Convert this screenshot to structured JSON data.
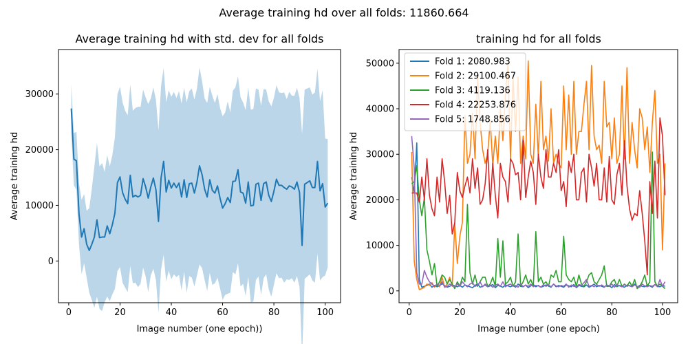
{
  "figure": {
    "suptitle": "Average training hd over all folds: 11860.664"
  },
  "chart_data": [
    {
      "type": "line",
      "title": "Average training hd with std. dev for all folds",
      "xlabel": "Image number (one epoch))",
      "ylabel": "Average training hd",
      "xlim": [
        -4,
        106
      ],
      "ylim": [
        -7500,
        38000
      ],
      "xticks": [
        0,
        20,
        40,
        60,
        80,
        100
      ],
      "yticks": [
        0,
        10000,
        20000,
        30000
      ],
      "line_color": "#1f77b4",
      "band_color": "#1f77b4",
      "grid": false,
      "x": [
        1,
        2,
        3,
        4,
        5,
        6,
        7,
        8,
        9,
        10,
        11,
        12,
        13,
        14,
        15,
        16,
        17,
        18,
        19,
        20,
        21,
        22,
        23,
        24,
        25,
        26,
        27,
        28,
        29,
        30,
        31,
        32,
        33,
        34,
        35,
        36,
        37,
        38,
        39,
        40,
        41,
        42,
        43,
        44,
        45,
        46,
        47,
        48,
        49,
        50,
        51,
        52,
        53,
        54,
        55,
        56,
        57,
        58,
        59,
        60,
        61,
        62,
        63,
        64,
        65,
        66,
        67,
        68,
        69,
        70,
        71,
        72,
        73,
        74,
        75,
        76,
        77,
        78,
        79,
        80,
        81,
        82,
        83,
        84,
        85,
        86,
        87,
        88,
        89,
        90,
        91,
        92,
        93,
        94,
        95,
        96,
        97,
        98,
        99,
        100,
        101
      ],
      "mean": [
        27400,
        18300,
        18000,
        8500,
        4300,
        5800,
        3000,
        1900,
        3000,
        4300,
        7400,
        4200,
        4300,
        4300,
        6300,
        4900,
        6500,
        8600,
        14100,
        15100,
        12300,
        11100,
        10300,
        15400,
        11500,
        11800,
        11500,
        11800,
        14800,
        13300,
        11300,
        13300,
        14900,
        12800,
        7100,
        14900,
        17900,
        12400,
        14500,
        13100,
        14000,
        13200,
        14000,
        11500,
        14600,
        11400,
        13900,
        14000,
        12200,
        14200,
        17100,
        15500,
        12900,
        11500,
        14600,
        12700,
        12200,
        13500,
        11300,
        9500,
        10300,
        11400,
        10500,
        14300,
        14400,
        16400,
        12400,
        12200,
        10400,
        14200,
        9900,
        10000,
        13800,
        14000,
        10900,
        13900,
        14200,
        11800,
        10700,
        12500,
        14700,
        13600,
        13600,
        13200,
        12900,
        13500,
        13300,
        12900,
        14200,
        12300,
        2800,
        13800,
        14100,
        14400,
        13200,
        13200,
        17900,
        12600,
        13900,
        9700,
        10400
      ],
      "upper": [
        31800,
        23000,
        23200,
        14000,
        11000,
        12000,
        9000,
        9500,
        13000,
        17000,
        21200,
        17000,
        17600,
        16000,
        19000,
        17000,
        19000,
        22200,
        30000,
        31300,
        28500,
        27000,
        26200,
        31700,
        27000,
        27500,
        27700,
        27700,
        30800,
        29400,
        28200,
        29200,
        31200,
        29000,
        23500,
        31400,
        34700,
        28500,
        30700,
        29500,
        30400,
        29300,
        30500,
        28300,
        31100,
        28500,
        30500,
        31000,
        29000,
        31000,
        34800,
        32300,
        29200,
        28400,
        31300,
        29700,
        28400,
        30000,
        27500,
        26000,
        26700,
        28700,
        26700,
        30600,
        31200,
        33200,
        29400,
        28500,
        27100,
        31200,
        27200,
        27300,
        31000,
        30800,
        27900,
        30900,
        30800,
        28700,
        27800,
        29300,
        31600,
        30300,
        30200,
        30300,
        29100,
        30400,
        29700,
        29700,
        31100,
        29300,
        22800,
        30800,
        31000,
        31200,
        29900,
        30300,
        34500,
        28700,
        30700,
        22000,
        21900
      ],
      "lower": [
        23000,
        13600,
        12800,
        3000,
        -2400,
        -400,
        -3000,
        -5700,
        -7000,
        -8400,
        -6400,
        -8600,
        -9000,
        -7400,
        -6400,
        -7200,
        -6000,
        -5000,
        -1800,
        -1100,
        -3900,
        -4800,
        -5600,
        -900,
        -4000,
        -3900,
        -4700,
        -4100,
        -1200,
        -2800,
        -5600,
        -2600,
        -1400,
        -3400,
        -9300,
        -1600,
        1100,
        -3700,
        -1700,
        -3300,
        -2400,
        -2900,
        -2500,
        -5300,
        -1900,
        -5700,
        -2700,
        -3000,
        -4600,
        -2600,
        -600,
        -1300,
        -3400,
        -5400,
        -2100,
        -4300,
        -4000,
        -3000,
        -4900,
        -7000,
        -6100,
        -5900,
        -5700,
        -2000,
        -2400,
        -400,
        -4600,
        -4100,
        -6300,
        -2800,
        -7400,
        -7300,
        -3400,
        -2800,
        -6100,
        -3100,
        -2400,
        -5100,
        -6400,
        -4300,
        -2200,
        -3100,
        -3000,
        -3900,
        -3300,
        -3400,
        -3100,
        -3900,
        -2700,
        -4700,
        -17200,
        -3200,
        -2800,
        -2400,
        -3500,
        -3900,
        1300,
        -3500,
        -2900,
        -2600,
        -1100
      ]
    },
    {
      "type": "line",
      "title": "training hd for all folds",
      "xlabel": "Image number (one epoch)",
      "ylabel": "Average training hd",
      "xlim": [
        -4,
        106
      ],
      "ylim": [
        -2600,
        53000
      ],
      "xticks": [
        0,
        20,
        40,
        60,
        80,
        100
      ],
      "yticks": [
        0,
        10000,
        20000,
        30000,
        40000,
        50000
      ],
      "grid": false,
      "legend_position": "upper-left",
      "x": [
        1,
        2,
        3,
        4,
        5,
        6,
        7,
        8,
        9,
        10,
        11,
        12,
        13,
        14,
        15,
        16,
        17,
        18,
        19,
        20,
        21,
        22,
        23,
        24,
        25,
        26,
        27,
        28,
        29,
        30,
        31,
        32,
        33,
        34,
        35,
        36,
        37,
        38,
        39,
        40,
        41,
        42,
        43,
        44,
        45,
        46,
        47,
        48,
        49,
        50,
        51,
        52,
        53,
        54,
        55,
        56,
        57,
        58,
        59,
        60,
        61,
        62,
        63,
        64,
        65,
        66,
        67,
        68,
        69,
        70,
        71,
        72,
        73,
        74,
        75,
        76,
        77,
        78,
        79,
        80,
        81,
        82,
        83,
        84,
        85,
        86,
        87,
        88,
        89,
        90,
        91,
        92,
        93,
        94,
        95,
        96,
        97,
        98,
        99,
        100,
        101
      ],
      "series": [
        {
          "name": "Fold 1: 2080.983",
          "color": "#1f77b4",
          "values": [
            25000,
            21500,
            32500,
            2500,
            800,
            1000,
            1200,
            1500,
            800,
            1200,
            900,
            1100,
            1600,
            1200,
            800,
            1000,
            1300,
            1100,
            900,
            1200,
            800,
            1300,
            1100,
            900,
            700,
            1200,
            1500,
            800,
            1000,
            1300,
            900,
            1100,
            1400,
            700,
            1200,
            1000,
            800,
            1300,
            1100,
            900,
            1200,
            800,
            1500,
            1000,
            900,
            1300,
            700,
            1100,
            1400,
            900,
            1200,
            800,
            1000,
            1300,
            1100,
            800,
            1500,
            900,
            1200,
            1000,
            800,
            1300,
            1100,
            900,
            1400,
            700,
            1200,
            1000,
            900,
            1300,
            800,
            1100,
            1500,
            900,
            1200,
            1000,
            800,
            1300,
            1100,
            700,
            1400,
            900,
            1200,
            1000,
            800,
            1300,
            1100,
            900,
            1500,
            800,
            1200,
            1000,
            900,
            1300,
            1100,
            800,
            1400,
            1000,
            900,
            1200,
            1000
          ]
        },
        {
          "name": "Fold 2: 29100.467",
          "color": "#ff7f0e",
          "values": [
            30500,
            6500,
            2500,
            300,
            500,
            800,
            1500,
            1200,
            1800,
            800,
            1500,
            900,
            3000,
            800,
            1500,
            3000,
            1000,
            15000,
            6000,
            12000,
            15000,
            38500,
            28000,
            30000,
            39000,
            29000,
            47000,
            37000,
            31000,
            28000,
            30000,
            37500,
            27500,
            34000,
            28000,
            40000,
            33000,
            43000,
            50000,
            29000,
            47000,
            35000,
            47000,
            28000,
            34000,
            29000,
            50500,
            30000,
            28000,
            41000,
            29000,
            46000,
            31000,
            34000,
            28500,
            40000,
            28000,
            30000,
            28000,
            27000,
            45000,
            31000,
            43000,
            30000,
            46000,
            30000,
            35000,
            35000,
            41000,
            46000,
            31000,
            49500,
            34000,
            31000,
            32000,
            28000,
            46000,
            36000,
            37000,
            29000,
            38000,
            28000,
            30000,
            45000,
            29000,
            49000,
            28000,
            37000,
            31000,
            27000,
            40000,
            38000,
            31000,
            36000,
            26000,
            37000,
            44000,
            28000,
            30000,
            9000,
            28000
          ]
        },
        {
          "name": "Fold 3: 4119.136",
          "color": "#2ca02c",
          "values": [
            23500,
            24000,
            27500,
            20000,
            16500,
            20500,
            9000,
            6500,
            3500,
            6000,
            1000,
            2000,
            3500,
            3000,
            1500,
            2500,
            1500,
            500,
            2000,
            1000,
            3000,
            2000,
            19000,
            4000,
            1500,
            3500,
            1000,
            2000,
            3000,
            3000,
            1000,
            1500,
            3000,
            1000,
            11500,
            3000,
            11000,
            1500,
            2000,
            3000,
            1000,
            2000,
            12500,
            1000,
            2000,
            3500,
            1500,
            2500,
            1000,
            13000,
            2000,
            3000,
            1500,
            2000,
            1000,
            3500,
            3000,
            4500,
            2000,
            2000,
            12000,
            3500,
            2500,
            2000,
            3000,
            1000,
            3500,
            1500,
            1000,
            2000,
            3500,
            4000,
            2000,
            1500,
            2500,
            3500,
            5500,
            1000,
            1000,
            2000,
            2500,
            1000,
            2500,
            1000,
            1500,
            1000,
            2000,
            1000,
            2500,
            500,
            1000,
            2000,
            3500,
            1000,
            2000,
            30500,
            2000,
            1000,
            1500,
            1000,
            500
          ]
        },
        {
          "name": "Fold 4: 22253.876",
          "color": "#d62728",
          "values": [
            21500,
            21500,
            21500,
            19500,
            25000,
            20000,
            29000,
            21000,
            18000,
            16500,
            25000,
            19500,
            29000,
            24000,
            17000,
            21000,
            12500,
            15000,
            26000,
            22000,
            20500,
            23000,
            25000,
            21500,
            29000,
            22500,
            27000,
            19000,
            20000,
            23500,
            31000,
            19000,
            28000,
            21000,
            16000,
            28000,
            25000,
            24000,
            19500,
            29000,
            28000,
            25500,
            26000,
            20000,
            33000,
            20500,
            25000,
            28500,
            26000,
            19000,
            30000,
            25000,
            22500,
            31000,
            25000,
            25000,
            28000,
            26000,
            31000,
            22000,
            24000,
            18500,
            28500,
            26000,
            30000,
            20000,
            20000,
            26000,
            27000,
            19500,
            30000,
            27000,
            23000,
            28000,
            20000,
            20000,
            27000,
            19500,
            29500,
            20000,
            19000,
            25500,
            28000,
            21000,
            33000,
            23000,
            18000,
            15500,
            17000,
            16500,
            22000,
            17000,
            11000,
            3500,
            24000,
            17000,
            28500,
            16000,
            38000,
            34000,
            21000
          ]
        },
        {
          "name": "Fold 5: 1748.856",
          "color": "#9467bd",
          "values": [
            34000,
            27000,
            4000,
            1500,
            1500,
            4500,
            3000,
            2000,
            1500,
            1000,
            1500,
            1200,
            2000,
            800,
            1000,
            1500,
            1200,
            900,
            1500,
            1000,
            2000,
            1300,
            900,
            1500,
            1800,
            1000,
            1200,
            2000,
            900,
            1500,
            1000,
            1300,
            800,
            1200,
            1500,
            1000,
            2000,
            900,
            1300,
            1500,
            1000,
            1200,
            800,
            1600,
            900,
            1300,
            1000,
            1500,
            900,
            1200,
            1100,
            800,
            1400,
            1000,
            1300,
            900,
            1500,
            1100,
            900,
            1200,
            1000,
            1500,
            800,
            1300,
            1000,
            900,
            1400,
            1200,
            1800,
            2500,
            1000,
            1200,
            900,
            1400,
            1000,
            1300,
            900,
            1200,
            1000,
            1500,
            800,
            1300,
            1100,
            900,
            1400,
            1000,
            1200,
            900,
            1300,
            1000,
            800,
            1500,
            1100,
            900,
            1200,
            1000,
            1400,
            900,
            2500,
            1000,
            2000
          ]
        }
      ]
    }
  ]
}
